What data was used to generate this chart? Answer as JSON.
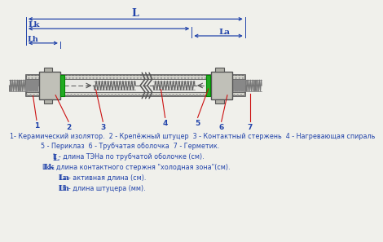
{
  "bg_color": "#f0f0eb",
  "blue": "#2244aa",
  "red": "#cc1111",
  "green": "#22aa22",
  "dgray": "#555555",
  "lgray": "#cccccc",
  "mgray": "#aaaaaa",
  "tube_fill": "#d8d8d0",
  "fitting_fill": "#c0c0b8",
  "white": "#ffffff",
  "line1a": "1- Керамический изолятор.",
  "line1b": "2 - Крепёжный штуцер",
  "line1c": "3 - Контактный стержень",
  "line1d": "4 - Нагревающая спираль",
  "line2a": "5 - Периклаз",
  "line2b": "6 - Трубчатая оболочка",
  "line2c": "7 - Герметик.",
  "line3": "L - длина ТЭНа по трубчатой оболочке (см).",
  "line4": "Lk - длина контактного стержня \"холодная зона\"(см).",
  "line5": "La - активная длина (см).",
  "line6": "Lh - длина штуцера (мм)."
}
